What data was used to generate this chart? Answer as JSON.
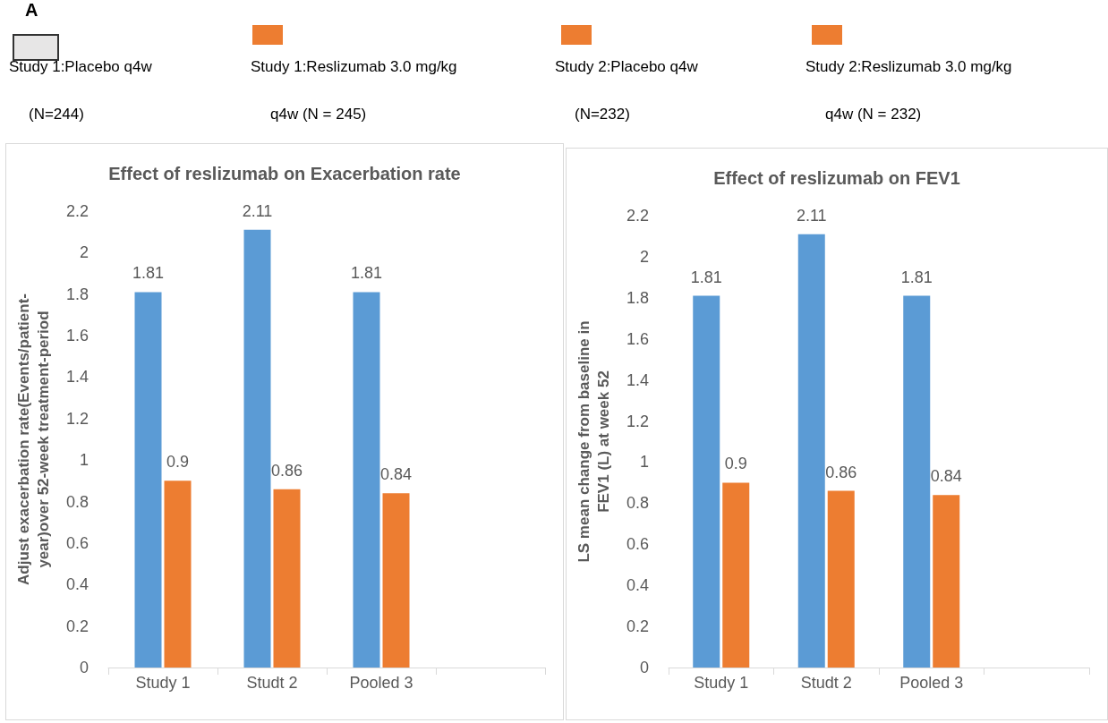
{
  "chart_data": [
    {
      "type": "other",
      "title": "A",
      "annotations": [
        "Study 1:Placebo q4w\n(N=244)",
        "Study 1:Reslizumab 3.0 mg/kg\nq4w (N = 245)",
        "Study 2:Placebo q4w\n(N=232)",
        "Study 2:Reslizumab 3.0 mg/kg\nq4w (N = 232)"
      ],
      "colors": [
        "#e7e6e6",
        "#ed7d31",
        "#ed7d31",
        "#ed7d31"
      ]
    },
    {
      "type": "bar",
      "title": "Effect of reslizumab on Exacerbation rate",
      "ylabel": "Adjust exacerbation rate(Events/patient-\nyear)over 52-week treatment-period",
      "categories": [
        "Study 1",
        "Studt 2",
        "Pooled 3",
        null
      ],
      "series": [
        {
          "color": "#5b9bd5",
          "values": [
            1.81,
            2.11,
            1.81,
            null
          ]
        },
        {
          "color": "#ed7d31",
          "values": [
            0.9,
            0.86,
            0.84,
            null
          ]
        }
      ],
      "ylim": [
        0,
        2.2
      ],
      "yticks": [
        0,
        0.2,
        0.4,
        0.6,
        0.8,
        1,
        1.2,
        1.4,
        1.6,
        1.8,
        2,
        2.2
      ],
      "grid": false,
      "data_labels": true
    },
    {
      "type": "bar",
      "title": "Effect of reslizumab on FEV1",
      "ylabel": "LS mean change from baseline in\nFEV1 (L) at week 52",
      "categories": [
        "Study 1",
        "Studt 2",
        "Pooled 3",
        null
      ],
      "series": [
        {
          "color": "#5b9bd5",
          "values": [
            1.81,
            2.11,
            1.81,
            null
          ]
        },
        {
          "color": "#ed7d31",
          "values": [
            0.9,
            0.86,
            0.84,
            null
          ]
        }
      ],
      "ylim": [
        0,
        2.2
      ],
      "yticks": [
        0,
        0.2,
        0.4,
        0.6,
        0.8,
        1,
        1.2,
        1.4,
        1.6,
        1.8,
        2,
        2.2
      ],
      "grid": false,
      "data_labels": true
    }
  ]
}
